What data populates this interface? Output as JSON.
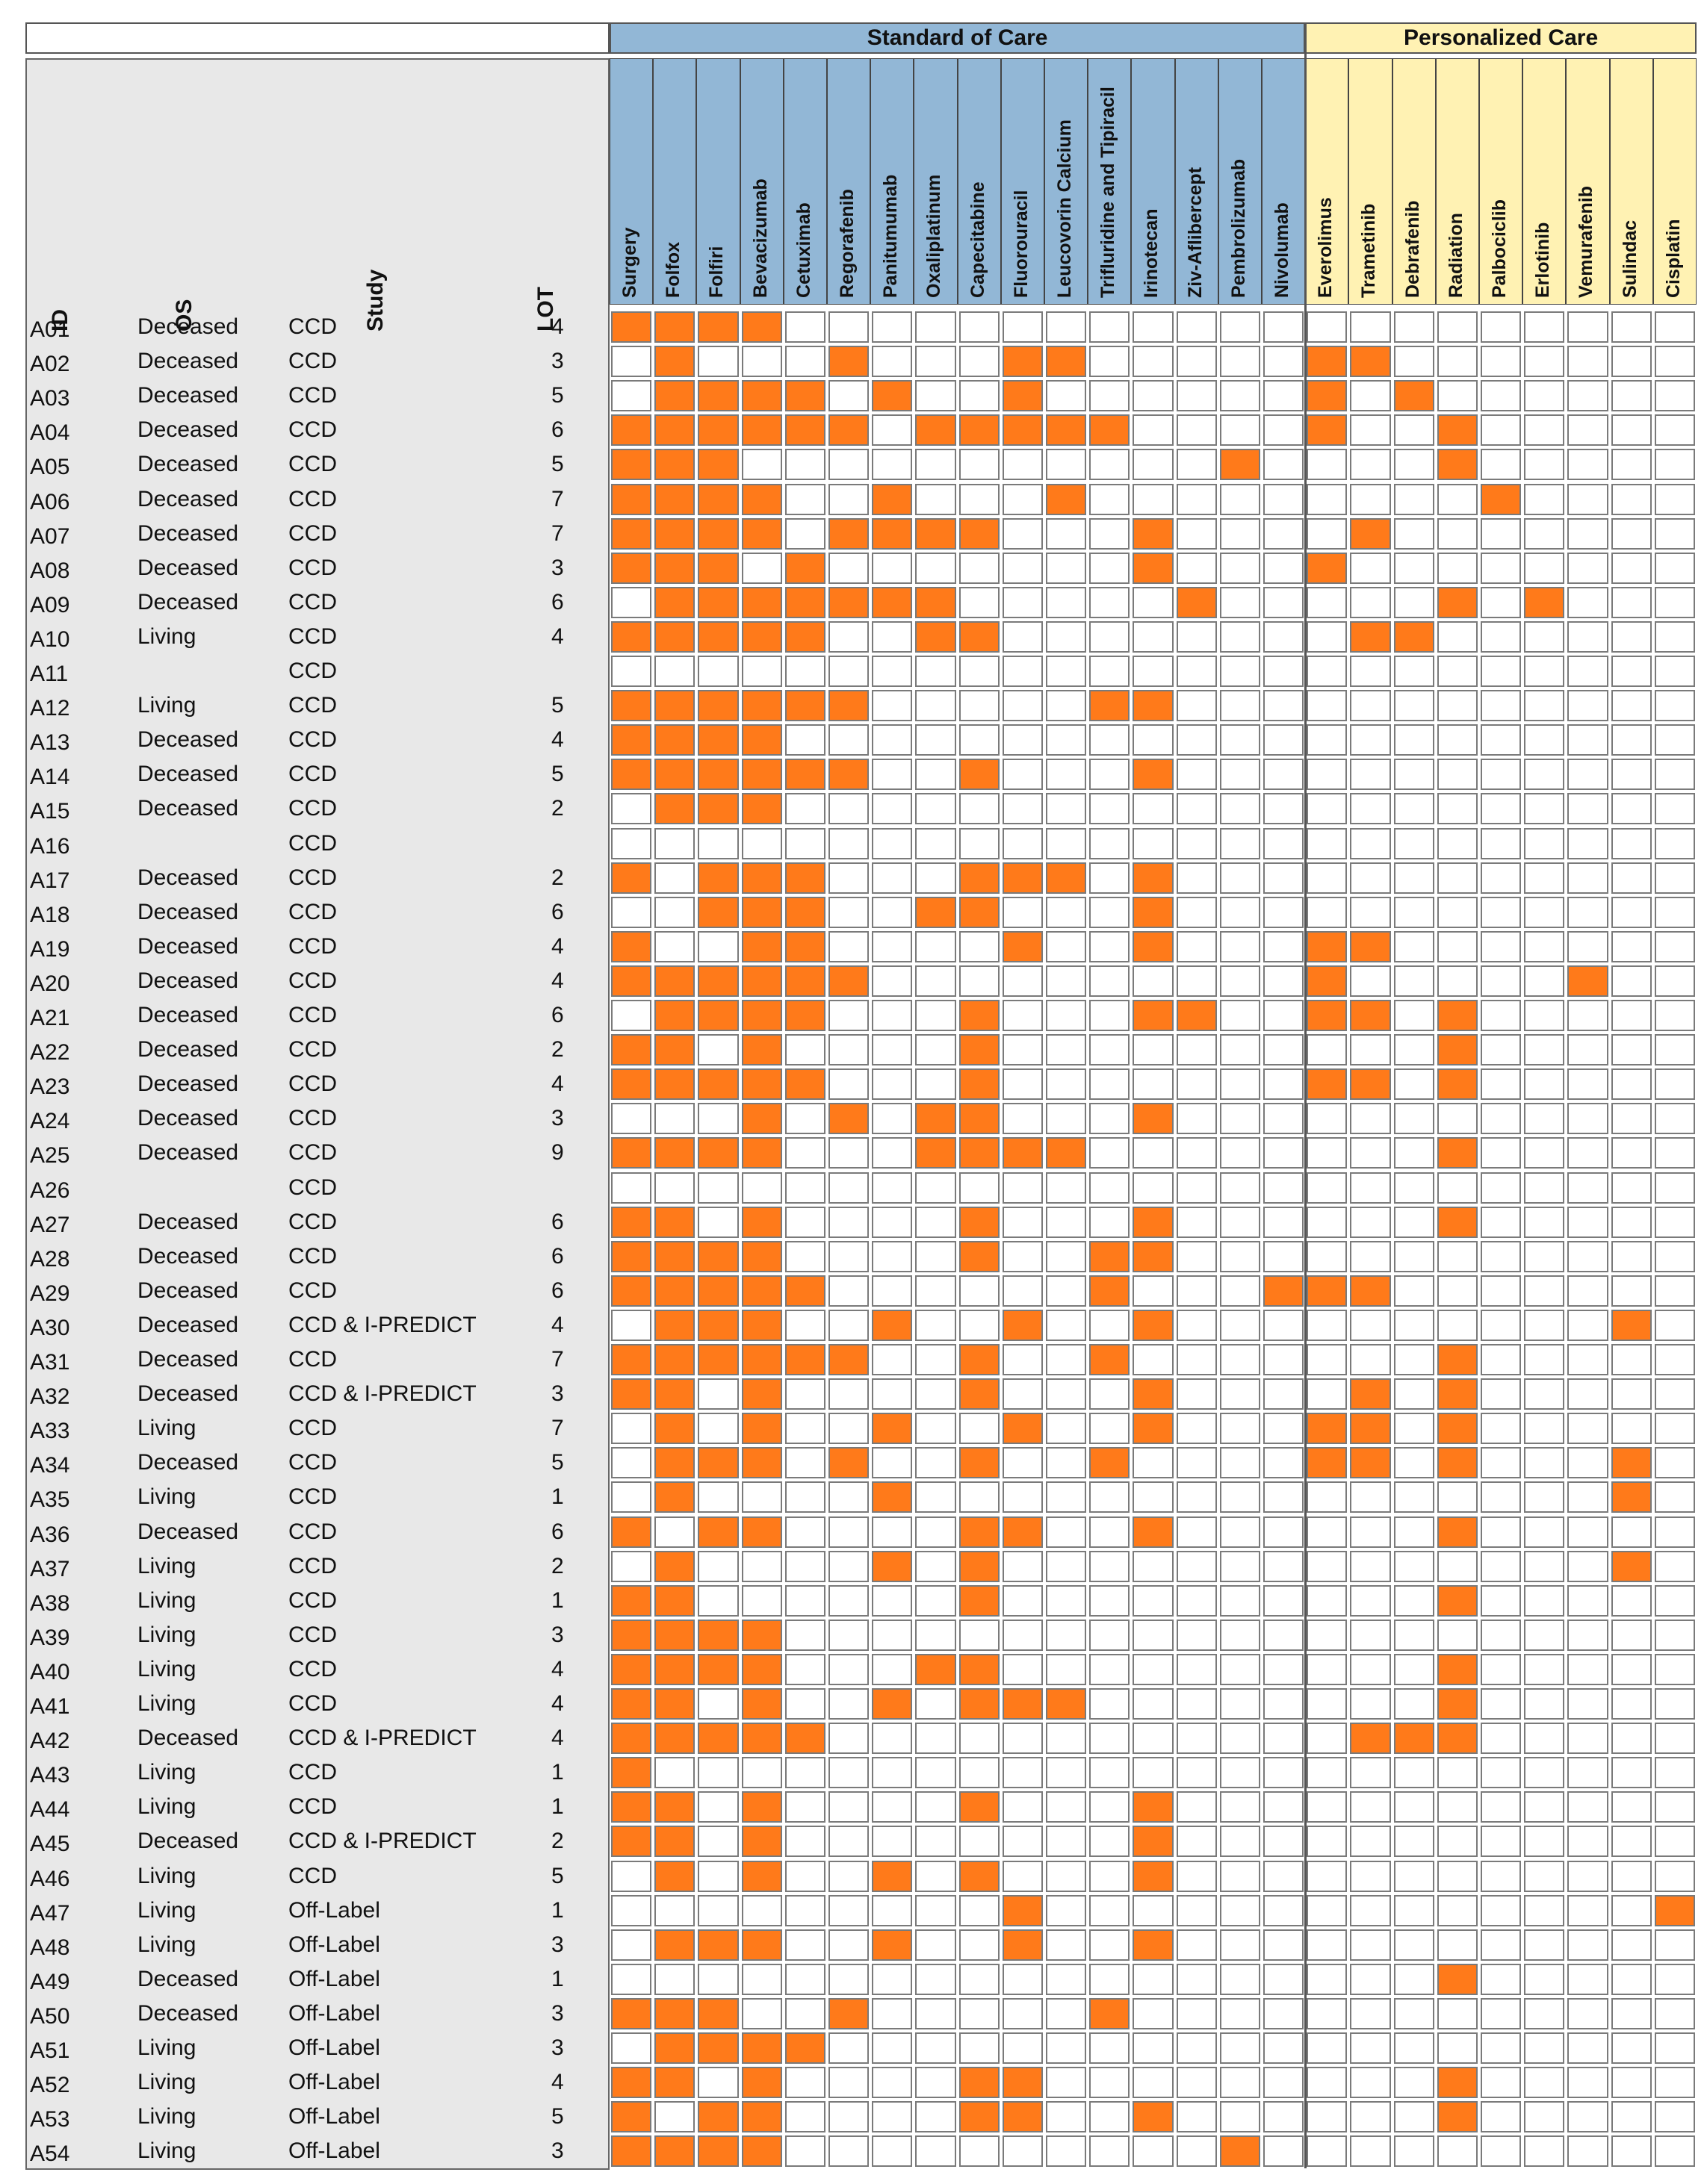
{
  "groups": {
    "standard_label": "Standard of Care",
    "personalized_label": "Personalized Care",
    "standard_color": "#92b7d6",
    "personalized_color": "#fff2b3"
  },
  "colors": {
    "filled": "#ff7a1a",
    "empty": "#ffffff",
    "left_panel": "#e8e8e8"
  },
  "left_headers": {
    "id": "ID",
    "os": "OS",
    "study": "Study",
    "lot": "LOT"
  },
  "chart_data": {
    "type": "heatmap",
    "title": "",
    "columns": [
      "Surgery",
      "Folfox",
      "Folfiri",
      "Bevacizumab",
      "Cetuximab",
      "Regorafenib",
      "Panitumumab",
      "Oxaliplatinum",
      "Capecitabine",
      "Fluorouracil",
      "Leucovorin Calcium",
      "Trifluridine and Tipiracil",
      "Irinotecan",
      "Ziv-Aflibercept",
      "Pembrolizumab",
      "Nivolumab",
      "Everolimus",
      "Trametinib",
      "Debrafenib",
      "Radiation",
      "Palbociclib",
      "Erlotinib",
      "Vemurafenib",
      "Sulindac",
      "Cisplatin"
    ],
    "column_groups": [
      {
        "name": "Standard of Care",
        "count": 16
      },
      {
        "name": "Personalized Care",
        "count": 9
      }
    ],
    "rows": [
      {
        "id": "A01",
        "os": "Deceased",
        "study": "CCD",
        "lot": "4",
        "cells": "1111000000000000000000000"
      },
      {
        "id": "A02",
        "os": "Deceased",
        "study": "CCD",
        "lot": "3",
        "cells": "0100010001100000110000000"
      },
      {
        "id": "A03",
        "os": "Deceased",
        "study": "CCD",
        "lot": "5",
        "cells": "0111101001000000101000000"
      },
      {
        "id": "A04",
        "os": "Deceased",
        "study": "CCD",
        "lot": "6",
        "cells": "1111110111110000100100000"
      },
      {
        "id": "A05",
        "os": "Deceased",
        "study": "CCD",
        "lot": "5",
        "cells": "1110000000000010000100000"
      },
      {
        "id": "A06",
        "os": "Deceased",
        "study": "CCD",
        "lot": "7",
        "cells": "1111001000100000000010000"
      },
      {
        "id": "A07",
        "os": "Deceased",
        "study": "CCD",
        "lot": "7",
        "cells": "1111011110001000010000000"
      },
      {
        "id": "A08",
        "os": "Deceased",
        "study": "CCD",
        "lot": "3",
        "cells": "1110100000001000100000000"
      },
      {
        "id": "A09",
        "os": "Deceased",
        "study": "CCD",
        "lot": "6",
        "cells": "0111111100000100000101000"
      },
      {
        "id": "A10",
        "os": "Living",
        "study": "CCD",
        "lot": "4",
        "cells": "1111100110000000011000000"
      },
      {
        "id": "A11",
        "os": "",
        "study": "CCD",
        "lot": "",
        "cells": "0000000000000000000000000"
      },
      {
        "id": "A12",
        "os": "Living",
        "study": "CCD",
        "lot": "5",
        "cells": "1111110000011000000000000"
      },
      {
        "id": "A13",
        "os": "Deceased",
        "study": "CCD",
        "lot": "4",
        "cells": "1111000000000000000000000"
      },
      {
        "id": "A14",
        "os": "Deceased",
        "study": "CCD",
        "lot": "5",
        "cells": "1111110010001000000000000"
      },
      {
        "id": "A15",
        "os": "Deceased",
        "study": "CCD",
        "lot": "2",
        "cells": "0111000000000000000000000"
      },
      {
        "id": "A16",
        "os": "",
        "study": "CCD",
        "lot": "",
        "cells": "0000000000000000000000000"
      },
      {
        "id": "A17",
        "os": "Deceased",
        "study": "CCD",
        "lot": "2",
        "cells": "1011100011101000000000000"
      },
      {
        "id": "A18",
        "os": "Deceased",
        "study": "CCD",
        "lot": "6",
        "cells": "0011100110001000000000000"
      },
      {
        "id": "A19",
        "os": "Deceased",
        "study": "CCD",
        "lot": "4",
        "cells": "1001100001001000110000000"
      },
      {
        "id": "A20",
        "os": "Deceased",
        "study": "CCD",
        "lot": "4",
        "cells": "1111110000000000100000100"
      },
      {
        "id": "A21",
        "os": "Deceased",
        "study": "CCD",
        "lot": "6",
        "cells": "0111100010001100110100000"
      },
      {
        "id": "A22",
        "os": "Deceased",
        "study": "CCD",
        "lot": "2",
        "cells": "1101000010000000000100000"
      },
      {
        "id": "A23",
        "os": "Deceased",
        "study": "CCD",
        "lot": "4",
        "cells": "1111100010000000110100000"
      },
      {
        "id": "A24",
        "os": "Deceased",
        "study": "CCD",
        "lot": "3",
        "cells": "0001010110001000000000000"
      },
      {
        "id": "A25",
        "os": "Deceased",
        "study": "CCD",
        "lot": "9",
        "cells": "1111000111100000000100000"
      },
      {
        "id": "A26",
        "os": "",
        "study": "CCD",
        "lot": "",
        "cells": "0000000000000000000000000"
      },
      {
        "id": "A27",
        "os": "Deceased",
        "study": "CCD",
        "lot": "6",
        "cells": "1101000010001000000100000"
      },
      {
        "id": "A28",
        "os": "Deceased",
        "study": "CCD",
        "lot": "6",
        "cells": "1111000010011000000000000"
      },
      {
        "id": "A29",
        "os": "Deceased",
        "study": "CCD",
        "lot": "6",
        "cells": "1111100000010001110000000"
      },
      {
        "id": "A30",
        "os": "Deceased",
        "study": "CCD & I-PREDICT",
        "lot": "4",
        "cells": "0111001001001000000000010"
      },
      {
        "id": "A31",
        "os": "Deceased",
        "study": "CCD",
        "lot": "7",
        "cells": "1111110010010000000100000"
      },
      {
        "id": "A32",
        "os": "Deceased",
        "study": "CCD & I-PREDICT",
        "lot": "3",
        "cells": "1101000010001000010100000"
      },
      {
        "id": "A33",
        "os": "Living",
        "study": "CCD",
        "lot": "7",
        "cells": "0101001001001000110100000"
      },
      {
        "id": "A34",
        "os": "Deceased",
        "study": "CCD",
        "lot": "5",
        "cells": "0111010010010000110100010"
      },
      {
        "id": "A35",
        "os": "Living",
        "study": "CCD",
        "lot": "1",
        "cells": "0100001000000000000000010"
      },
      {
        "id": "A36",
        "os": "Deceased",
        "study": "CCD",
        "lot": "6",
        "cells": "1011000011001000000100000"
      },
      {
        "id": "A37",
        "os": "Living",
        "study": "CCD",
        "lot": "2",
        "cells": "0100001010000000000000010"
      },
      {
        "id": "A38",
        "os": "Living",
        "study": "CCD",
        "lot": "1",
        "cells": "1100000010000000000100000"
      },
      {
        "id": "A39",
        "os": "Living",
        "study": "CCD",
        "lot": "3",
        "cells": "1111000000000000000000000"
      },
      {
        "id": "A40",
        "os": "Living",
        "study": "CCD",
        "lot": "4",
        "cells": "1111000110000000000100000"
      },
      {
        "id": "A41",
        "os": "Living",
        "study": "CCD",
        "lot": "4",
        "cells": "1101001011100000000100000"
      },
      {
        "id": "A42",
        "os": "Deceased",
        "study": "CCD & I-PREDICT",
        "lot": "4",
        "cells": "1111100000000000011100000"
      },
      {
        "id": "A43",
        "os": "Living",
        "study": "CCD",
        "lot": "1",
        "cells": "1000000000000000000000000"
      },
      {
        "id": "A44",
        "os": "Living",
        "study": "CCD",
        "lot": "1",
        "cells": "1101000010001000000000000"
      },
      {
        "id": "A45",
        "os": "Deceased",
        "study": "CCD & I-PREDICT",
        "lot": "2",
        "cells": "1101000000001000000000000"
      },
      {
        "id": "A46",
        "os": "Living",
        "study": "CCD",
        "lot": "5",
        "cells": "0101001010001000000000000"
      },
      {
        "id": "A47",
        "os": "Living",
        "study": "Off-Label",
        "lot": "1",
        "cells": "0000000001000000000000001"
      },
      {
        "id": "A48",
        "os": "Living",
        "study": "Off-Label",
        "lot": "3",
        "cells": "0111001001001000000000000"
      },
      {
        "id": "A49",
        "os": "Deceased",
        "study": "Off-Label",
        "lot": "1",
        "cells": "0000000000000000000100000"
      },
      {
        "id": "A50",
        "os": "Deceased",
        "study": "Off-Label",
        "lot": "3",
        "cells": "1110010000010000000000000"
      },
      {
        "id": "A51",
        "os": "Living",
        "study": "Off-Label",
        "lot": "3",
        "cells": "0111100000000000000000000"
      },
      {
        "id": "A52",
        "os": "Living",
        "study": "Off-Label",
        "lot": "4",
        "cells": "1101000011000000000100000"
      },
      {
        "id": "A53",
        "os": "Living",
        "study": "Off-Label",
        "lot": "5",
        "cells": "1011000011001000000100000"
      },
      {
        "id": "A54",
        "os": "Living",
        "study": "Off-Label",
        "lot": "3",
        "cells": "1111000000000010000000000"
      }
    ]
  }
}
